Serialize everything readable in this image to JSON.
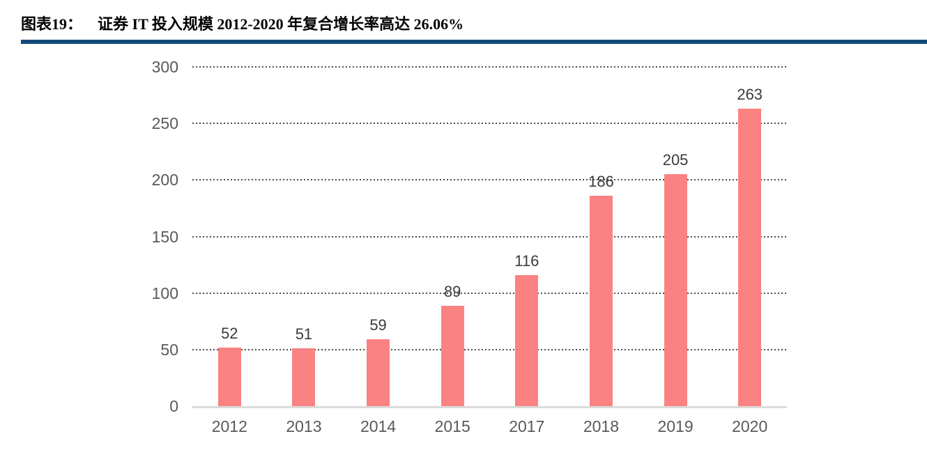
{
  "header": {
    "figure_label": "图表19：",
    "title": "证券 IT 投入规模 2012-2020 年复合增长率高达 26.06%"
  },
  "colors": {
    "title_text": "#000000",
    "title_underline": "#134A7B",
    "bar": "#FA8282",
    "axis_label": "#595959",
    "value_label": "#3B3B3B",
    "baseline": "#DBDBDB",
    "gridline": "#4d4d4d"
  },
  "chart_data": {
    "type": "bar",
    "title": "证券 IT 投入规模 2012-2020 年复合增长率高达 26.06%",
    "categories": [
      "2012",
      "2013",
      "2014",
      "2015",
      "2017",
      "2018",
      "2019",
      "2020"
    ],
    "values": [
      52,
      51,
      59,
      89,
      116,
      186,
      205,
      263
    ],
    "xlabel": "",
    "ylabel": "",
    "ylim": [
      0,
      300
    ],
    "yticks": [
      300,
      250,
      200,
      150,
      100,
      50,
      0
    ],
    "grid": "horizontal-dotted",
    "legend": "none",
    "data_labels": true,
    "bar_color": "#FA8282"
  }
}
